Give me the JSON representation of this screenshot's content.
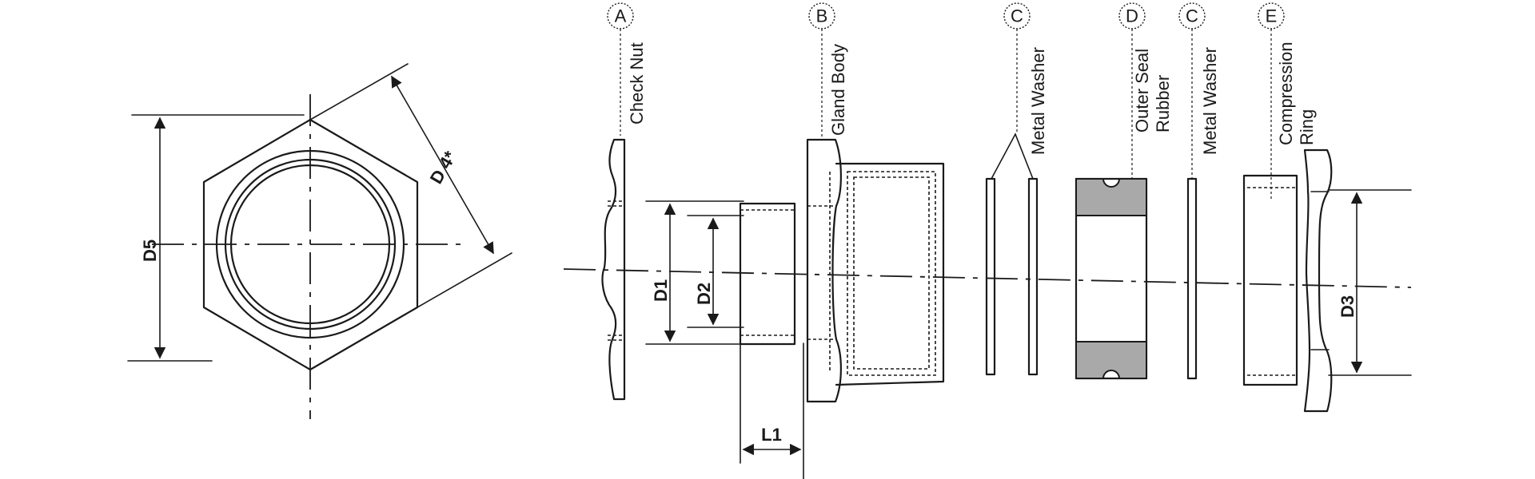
{
  "callouts": [
    {
      "letter": "A",
      "label_lines": [
        "Check Nut"
      ]
    },
    {
      "letter": "B",
      "label_lines": [
        "Gland Body"
      ]
    },
    {
      "letter": "C",
      "label_lines": [
        "Metal Washer"
      ]
    },
    {
      "letter": "D",
      "label_lines": [
        "Outer Seal",
        "Rubber"
      ]
    },
    {
      "letter": "C",
      "label_lines": [
        "Metal Washer"
      ]
    },
    {
      "letter": "E",
      "label_lines": [
        "Compression",
        "Ring"
      ]
    }
  ],
  "dimensions": {
    "d5": "D5",
    "d4": "D 4*",
    "d1": "D1",
    "d2": "D2",
    "d3": "D3",
    "l1": "L1"
  }
}
